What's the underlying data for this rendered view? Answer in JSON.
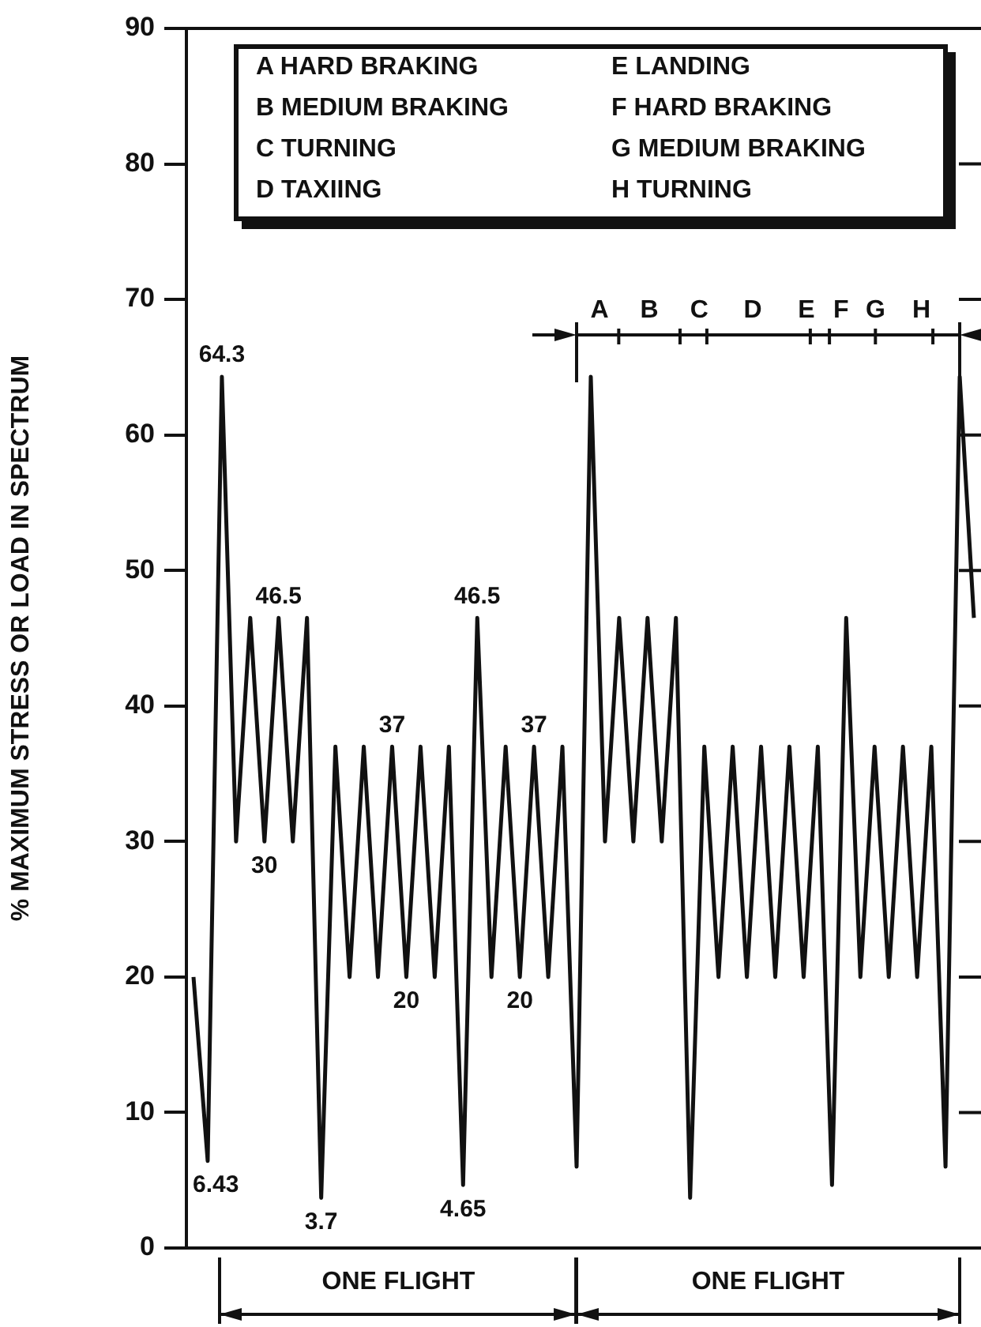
{
  "chart_data": {
    "type": "line",
    "ylabel": "% MAXIMUM STRESS OR LOAD IN SPECTRUM",
    "categories": [
      null,
      null,
      null,
      null,
      null,
      null,
      null,
      null,
      null,
      null,
      null,
      null,
      null,
      null,
      null,
      null,
      null,
      null,
      null,
      null,
      null,
      null,
      null,
      null,
      null,
      null,
      null,
      null,
      null,
      null,
      null,
      null,
      null,
      null,
      null,
      null,
      null,
      null,
      null,
      null,
      null,
      null,
      null,
      null,
      null,
      null,
      null,
      null,
      null,
      null,
      null,
      null,
      null,
      null,
      null,
      null
    ],
    "series": [
      {
        "color": "#111111",
        "values": [
          20,
          6.43,
          64.3,
          30,
          46.5,
          30,
          46.5,
          30,
          46.5,
          3.7,
          37,
          20,
          37,
          20,
          37,
          20,
          37,
          20,
          37,
          4.65,
          46.5,
          20,
          37,
          20,
          37,
          20,
          37,
          6,
          64.3,
          30,
          46.5,
          30,
          46.5,
          30,
          46.5,
          3.7,
          37,
          20,
          37,
          20,
          37,
          20,
          37,
          20,
          37,
          4.65,
          46.5,
          20,
          37,
          20,
          37,
          20,
          37,
          6,
          64.3,
          46.5
        ],
        "value_labels": [
          null,
          "6.43",
          "64.3",
          null,
          null,
          "30",
          "46.5",
          null,
          null,
          "3.7",
          null,
          null,
          null,
          null,
          "37",
          "20",
          null,
          null,
          null,
          "4.65",
          "46.5",
          null,
          null,
          "20",
          "37",
          null,
          null,
          null,
          null,
          null,
          null,
          null,
          null,
          null,
          null,
          null,
          null,
          null,
          null,
          null,
          null,
          null,
          null,
          null,
          null,
          null,
          null,
          null,
          null,
          null,
          null,
          null,
          null,
          null,
          null,
          null
        ]
      }
    ],
    "ylim": [
      0,
      90
    ],
    "yticks": [
      0,
      10,
      20,
      30,
      40,
      50,
      60,
      70,
      80,
      90
    ],
    "grid": false,
    "legend": false,
    "marker": "none",
    "line_style": "solid",
    "tick_labels": "y",
    "annotations": [
      "A  HARD BRAKING",
      "B  MEDIUM BRAKING",
      "C  TURNING",
      "D  TAXIING",
      "E  LANDING",
      "F  HARD BRAKING",
      "G  MEDIUM BRAKING",
      "H  TURNING",
      "A",
      "B",
      "C",
      "D",
      "E",
      "F",
      "G",
      "H",
      "ONE FLIGHT",
      "ONE FLIGHT"
    ]
  }
}
